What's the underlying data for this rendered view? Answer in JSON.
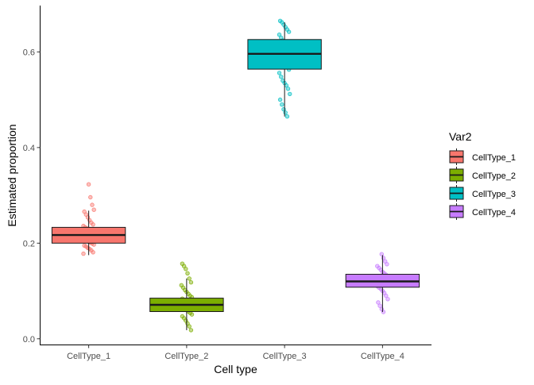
{
  "chart_data": {
    "type": "box",
    "xlabel": "Cell type",
    "ylabel": "Estimated proportion",
    "categories": [
      "CellType_1",
      "CellType_2",
      "CellType_3",
      "CellType_4"
    ],
    "ylim": [
      -0.012,
      0.697
    ],
    "yticks": [
      0.0,
      0.2,
      0.4,
      0.6
    ],
    "ytick_labels": [
      "0.0",
      "0.2",
      "0.4",
      "0.6"
    ],
    "legend": {
      "title": "Var2",
      "position": "right",
      "entries": [
        "CellType_1",
        "CellType_2",
        "CellType_3",
        "CellType_4"
      ]
    },
    "grid": false,
    "colors": [
      "#F8766D",
      "#7CAE00",
      "#00BFC4",
      "#C77CFF"
    ],
    "boxes": [
      {
        "name": "CellType_1",
        "min": 0.175,
        "q1": 0.2,
        "median": 0.217,
        "q3": 0.233,
        "max": 0.268
      },
      {
        "name": "CellType_2",
        "min": 0.018,
        "q1": 0.057,
        "median": 0.071,
        "q3": 0.085,
        "max": 0.126
      },
      {
        "name": "CellType_3",
        "min": 0.465,
        "q1": 0.564,
        "median": 0.596,
        "q3": 0.626,
        "max": 0.662
      },
      {
        "name": "CellType_4",
        "min": 0.056,
        "q1": 0.108,
        "median": 0.12,
        "q3": 0.135,
        "max": 0.175
      }
    ],
    "points": [
      [
        0.178,
        0.181,
        0.185,
        0.188,
        0.19,
        0.193,
        0.195,
        0.197,
        0.199,
        0.201,
        0.203,
        0.205,
        0.207,
        0.209,
        0.211,
        0.213,
        0.215,
        0.217,
        0.219,
        0.221,
        0.223,
        0.225,
        0.227,
        0.229,
        0.231,
        0.233,
        0.236,
        0.239,
        0.243,
        0.248,
        0.254,
        0.26,
        0.266,
        0.27,
        0.28,
        0.296,
        0.323
      ],
      [
        0.018,
        0.026,
        0.032,
        0.038,
        0.043,
        0.047,
        0.051,
        0.054,
        0.057,
        0.06,
        0.063,
        0.066,
        0.069,
        0.071,
        0.073,
        0.075,
        0.078,
        0.081,
        0.084,
        0.087,
        0.09,
        0.094,
        0.098,
        0.102,
        0.107,
        0.112,
        0.118,
        0.126,
        0.137,
        0.146,
        0.152,
        0.157
      ],
      [
        0.465,
        0.473,
        0.48,
        0.49,
        0.5,
        0.512,
        0.523,
        0.53,
        0.535,
        0.54,
        0.548,
        0.556,
        0.563,
        0.57,
        0.576,
        0.582,
        0.588,
        0.594,
        0.6,
        0.606,
        0.612,
        0.618,
        0.624,
        0.63,
        0.636,
        0.642,
        0.647,
        0.652,
        0.657,
        0.662,
        0.665
      ],
      [
        0.056,
        0.062,
        0.069,
        0.076,
        0.083,
        0.09,
        0.096,
        0.1,
        0.104,
        0.107,
        0.11,
        0.113,
        0.116,
        0.119,
        0.122,
        0.125,
        0.128,
        0.131,
        0.134,
        0.137,
        0.14,
        0.144,
        0.148,
        0.152,
        0.156,
        0.162,
        0.169,
        0.177
      ]
    ]
  }
}
